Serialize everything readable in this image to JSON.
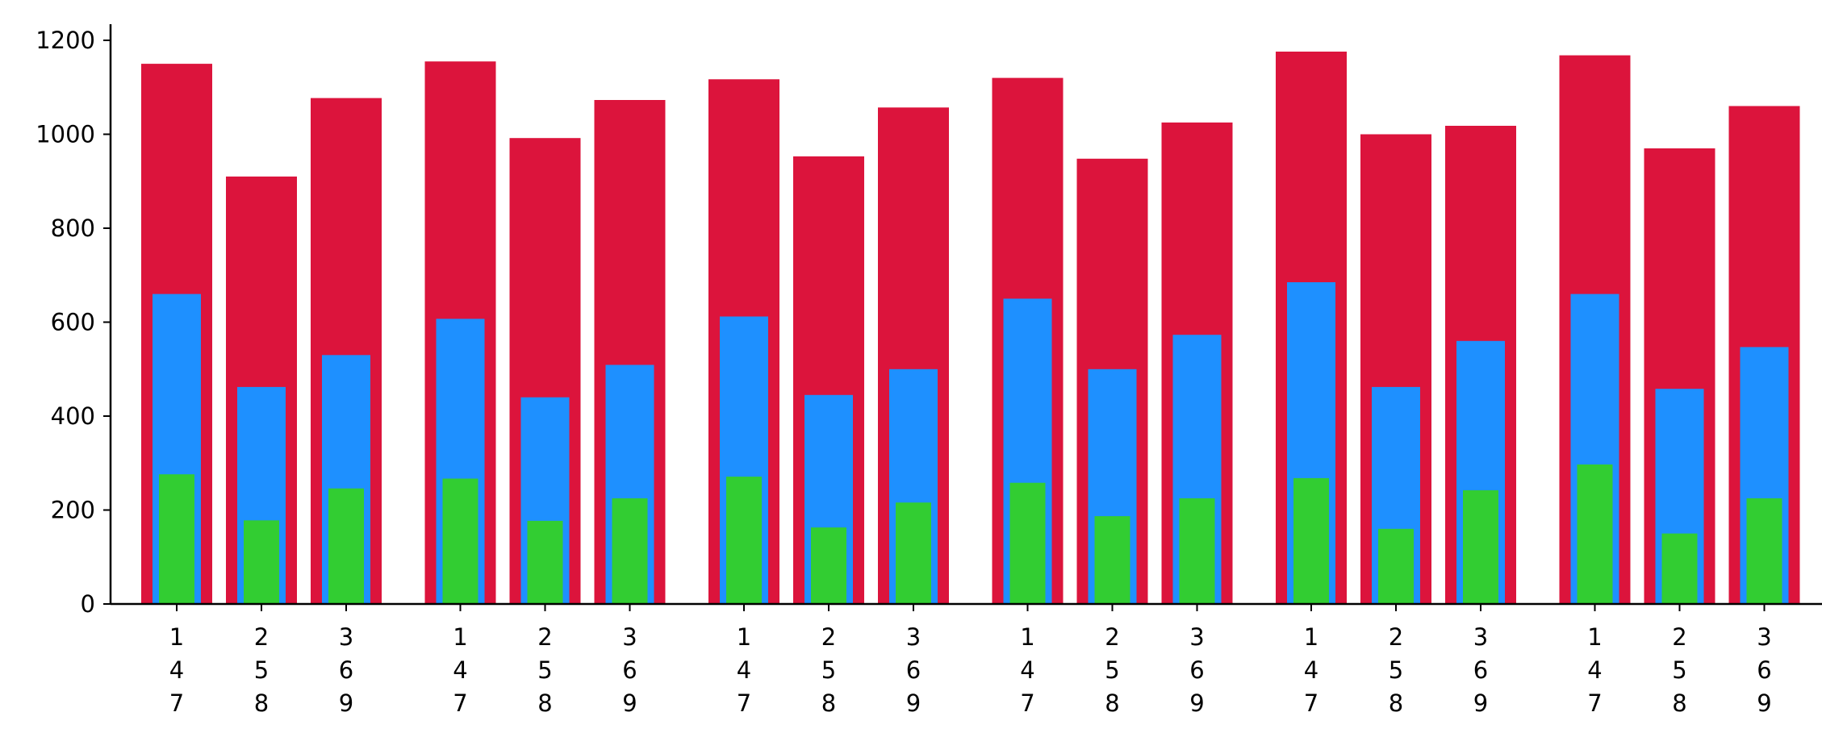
{
  "chart_data": {
    "type": "bar",
    "categories": [
      "1\n4\n7",
      "2\n5\n8",
      "3\n6\n9"
    ],
    "groups": 6,
    "series": [
      {
        "color": "#dc143c",
        "values": [
          [
            1150,
            910,
            1077
          ],
          [
            1155,
            992,
            1073
          ],
          [
            1117,
            953,
            1057
          ],
          [
            1120,
            948,
            1025
          ],
          [
            1176,
            1000,
            1018
          ],
          [
            1168,
            970,
            1060
          ]
        ]
      },
      {
        "color": "#1e90ff",
        "values": [
          [
            660,
            462,
            530
          ],
          [
            607,
            440,
            509
          ],
          [
            612,
            445,
            500
          ],
          [
            650,
            500,
            573
          ],
          [
            685,
            462,
            560
          ],
          [
            660,
            458,
            547
          ]
        ]
      },
      {
        "color": "#32cd32",
        "values": [
          [
            276,
            178,
            246
          ],
          [
            267,
            177,
            225
          ],
          [
            271,
            163,
            216
          ],
          [
            258,
            187,
            225
          ],
          [
            268,
            160,
            242
          ],
          [
            297,
            150,
            225
          ]
        ]
      }
    ],
    "yticks": [
      0,
      200,
      400,
      600,
      800,
      1000,
      1200
    ],
    "ylim": [
      0,
      1200
    ],
    "xlabel": "",
    "ylabel": "",
    "title": "",
    "grid": false,
    "legend": false
  }
}
